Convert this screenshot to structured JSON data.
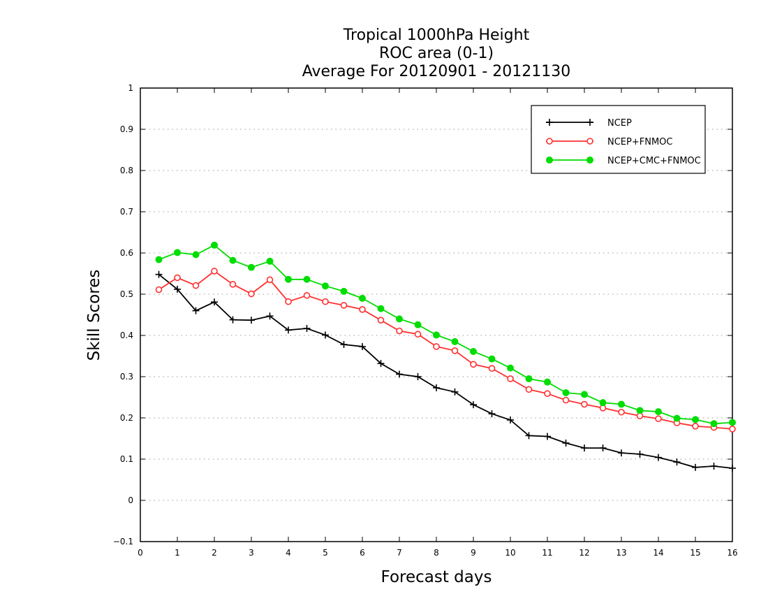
{
  "chart_data": {
    "type": "line",
    "title": [
      "Tropical 1000hPa Height",
      "ROC area (0-1)",
      "Average For 20120901 - 20121130"
    ],
    "xlabel": "Forecast days",
    "ylabel": "Skill Scores",
    "xlim": [
      0,
      16
    ],
    "ylim": [
      -0.1,
      1
    ],
    "xticks": [
      "0",
      "1",
      "2",
      "3",
      "4",
      "5",
      "6",
      "7",
      "8",
      "9",
      "10",
      "11",
      "12",
      "13",
      "14",
      "15",
      "16"
    ],
    "yticks": [
      "−0.1",
      "0",
      "0.1",
      "0.2",
      "0.3",
      "0.4",
      "0.5",
      "0.6",
      "0.7",
      "0.8",
      "0.9",
      "1"
    ],
    "grid": "horizontal dotted",
    "legend_position": "top-right",
    "x": [
      0.5,
      1,
      1.5,
      2,
      2.5,
      3,
      3.5,
      4,
      4.5,
      5,
      5.5,
      6,
      6.5,
      7,
      7.5,
      8,
      8.5,
      9,
      9.5,
      10,
      10.5,
      11,
      11.5,
      12,
      12.5,
      13,
      13.5,
      14,
      14.5,
      15,
      15.5,
      16
    ],
    "series": [
      {
        "name": "NCEP",
        "color": "#000000",
        "marker": "plus",
        "values": [
          0.548,
          0.512,
          0.46,
          0.481,
          0.438,
          0.437,
          0.447,
          0.413,
          0.417,
          0.401,
          0.378,
          0.373,
          0.332,
          0.306,
          0.3,
          0.273,
          0.263,
          0.232,
          0.21,
          0.195,
          0.157,
          0.155,
          0.139,
          0.127,
          0.127,
          0.115,
          0.112,
          0.104,
          0.093,
          0.08,
          0.083,
          0.078
        ]
      },
      {
        "name": "NCEP+FNMOC",
        "color": "#ff3030",
        "marker": "open-circle",
        "values": [
          0.511,
          0.54,
          0.521,
          0.556,
          0.524,
          0.501,
          0.535,
          0.482,
          0.497,
          0.482,
          0.473,
          0.463,
          0.437,
          0.411,
          0.403,
          0.373,
          0.363,
          0.33,
          0.32,
          0.295,
          0.269,
          0.259,
          0.243,
          0.233,
          0.224,
          0.214,
          0.205,
          0.198,
          0.188,
          0.18,
          0.177,
          0.173
        ]
      },
      {
        "name": "NCEP+CMC+FNMOC",
        "color": "#00dd00",
        "marker": "filled-circle",
        "values": [
          0.584,
          0.601,
          0.596,
          0.619,
          0.582,
          0.565,
          0.58,
          0.536,
          0.536,
          0.52,
          0.507,
          0.49,
          0.465,
          0.44,
          0.426,
          0.401,
          0.385,
          0.361,
          0.343,
          0.321,
          0.295,
          0.287,
          0.261,
          0.257,
          0.237,
          0.233,
          0.218,
          0.215,
          0.199,
          0.196,
          0.186,
          0.189
        ]
      }
    ]
  }
}
